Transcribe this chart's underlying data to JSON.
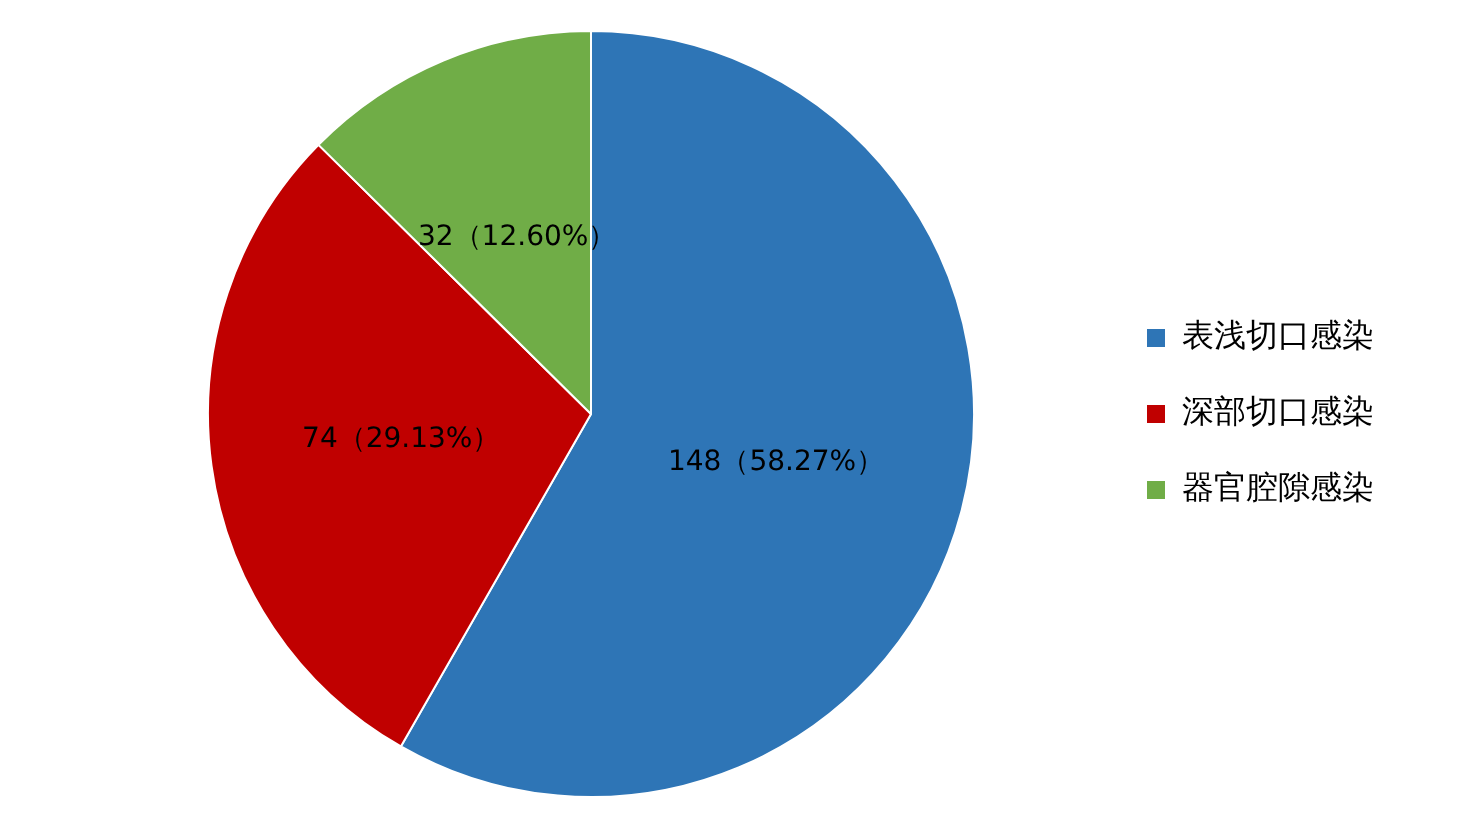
{
  "chart_data": {
    "type": "pie",
    "categories": [
      "表浅切口感染",
      "深部切口感染",
      "器官腔隙感染"
    ],
    "values": [
      148,
      74,
      32
    ],
    "colors": [
      "#2e75b6",
      "#c00000",
      "#70ad47"
    ],
    "value_labels": [
      "148（58.27%）",
      "74（29.13%）",
      "32（12.60%）"
    ],
    "legend": "right"
  }
}
